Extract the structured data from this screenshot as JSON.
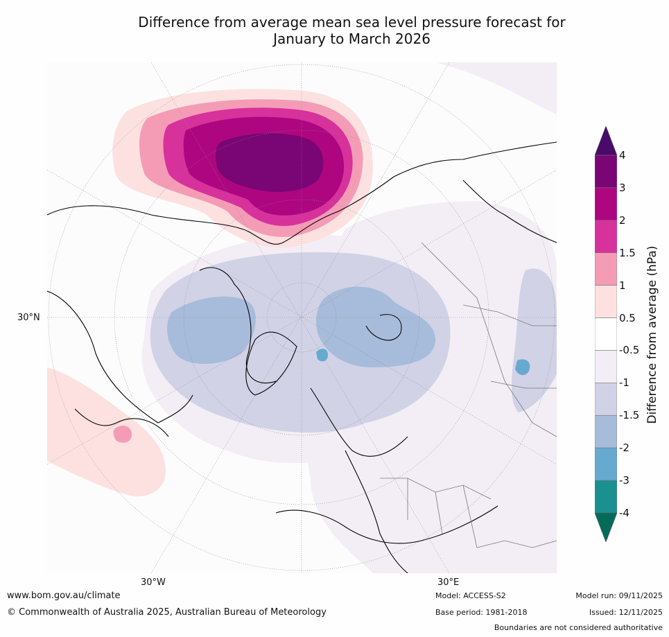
{
  "title": {
    "line1": "Difference from average mean sea level pressure forecast for",
    "line2": "January to March 2026"
  },
  "map": {
    "projection": "North polar stereographic",
    "axis_labels": {
      "left": "30°N",
      "bottom_left": "30°W",
      "bottom_right": "30°E"
    }
  },
  "colorbar": {
    "label": "Difference from average (hPa)",
    "ticks": [
      "4",
      "3",
      "2",
      "1.5",
      "1",
      "0.5",
      "-0.5",
      "-1",
      "-1.5",
      "-2",
      "-3",
      "-4"
    ],
    "bands": [
      {
        "range": "> 4",
        "color": "#4a0a6a"
      },
      {
        "range": "3 to 4",
        "color": "#7a0575"
      },
      {
        "range": "2 to 3",
        "color": "#ae0680"
      },
      {
        "range": "1.5 to 2",
        "color": "#d7319c"
      },
      {
        "range": "1 to 1.5",
        "color": "#f49cb6"
      },
      {
        "range": "0.5 to 1",
        "color": "#fde1e1"
      },
      {
        "range": "-0.5 to 0.5",
        "color": "#ffffff"
      },
      {
        "range": "-1 to -0.5",
        "color": "#f3edf5"
      },
      {
        "range": "-1.5 to -1",
        "color": "#d1d2e6"
      },
      {
        "range": "-2 to -1.5",
        "color": "#a7bcda"
      },
      {
        "range": "-3 to -2",
        "color": "#67aad0"
      },
      {
        "range": "-4 to -3",
        "color": "#1a9090"
      },
      {
        "range": "< -4",
        "color": "#046b5a"
      }
    ]
  },
  "footer": {
    "website": "www.bom.gov.au/climate",
    "copyright": "© Commonwealth of Australia 2025, Australian Bureau of Meteorology",
    "model": "Model: ACCESS-S2",
    "base_period": "Base period: 1981-2018",
    "model_run": "Model run: 09/11/2025",
    "issued": "Issued: 12/11/2025",
    "disclaimer": "Boundaries are not considered authoritative"
  }
}
